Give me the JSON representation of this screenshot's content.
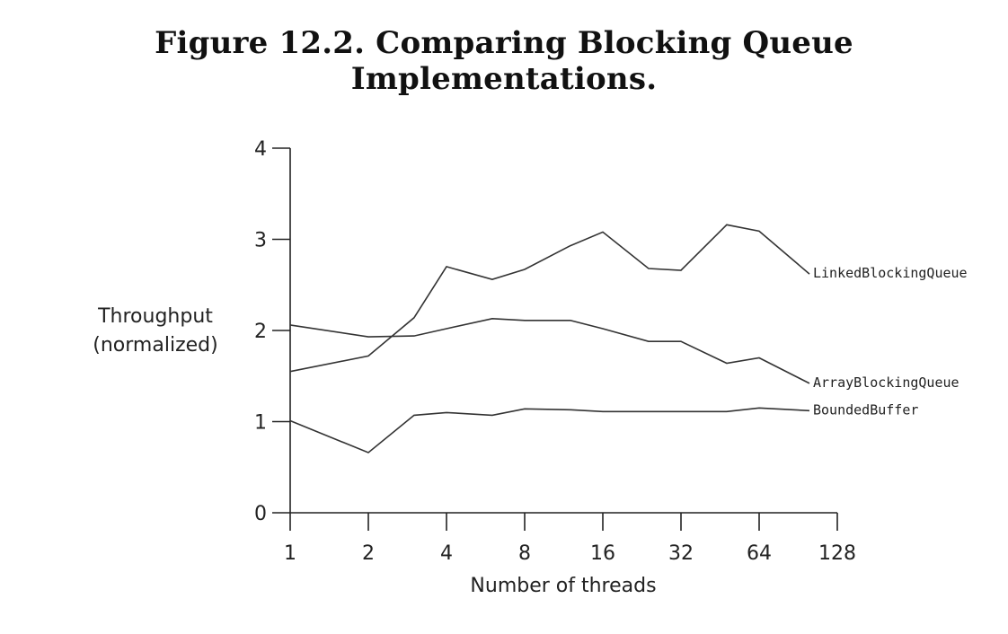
{
  "title": "Figure 12.2. Comparing Blocking Queue Implementations.",
  "chart_data": {
    "type": "line",
    "title": "Figure 12.2. Comparing Blocking Queue Implementations.",
    "xlabel": "Number of threads",
    "ylabel": [
      "Throughput",
      "(normalized)"
    ],
    "xscale": "log2",
    "x_ticks": [
      1,
      2,
      4,
      8,
      16,
      32,
      64,
      128
    ],
    "y_ticks": [
      0,
      1,
      2,
      3,
      4
    ],
    "xlim": [
      1,
      128
    ],
    "ylim": [
      0,
      4
    ],
    "grid": false,
    "legend": "inline labels at line ends (right)",
    "series": [
      {
        "name": "LinkedBlockingQueue",
        "x": [
          1,
          2,
          3,
          4,
          6,
          8,
          12,
          16,
          24,
          32,
          48,
          64,
          100
        ],
        "y": [
          1.55,
          1.72,
          2.14,
          2.7,
          2.56,
          2.67,
          2.93,
          3.08,
          2.68,
          2.66,
          3.16,
          3.09,
          2.62
        ]
      },
      {
        "name": "ArrayBlockingQueue",
        "x": [
          1,
          2,
          3,
          4,
          6,
          8,
          12,
          16,
          24,
          32,
          48,
          64,
          100
        ],
        "y": [
          2.06,
          1.93,
          1.94,
          2.02,
          2.13,
          2.11,
          2.11,
          2.02,
          1.88,
          1.88,
          1.64,
          1.7,
          1.42
        ]
      },
      {
        "name": "BoundedBuffer",
        "x": [
          1,
          2,
          3,
          4,
          6,
          8,
          12,
          16,
          24,
          32,
          48,
          64,
          100
        ],
        "y": [
          1.01,
          0.66,
          1.07,
          1.1,
          1.07,
          1.14,
          1.13,
          1.11,
          1.11,
          1.11,
          1.11,
          1.15,
          1.12
        ]
      }
    ]
  }
}
